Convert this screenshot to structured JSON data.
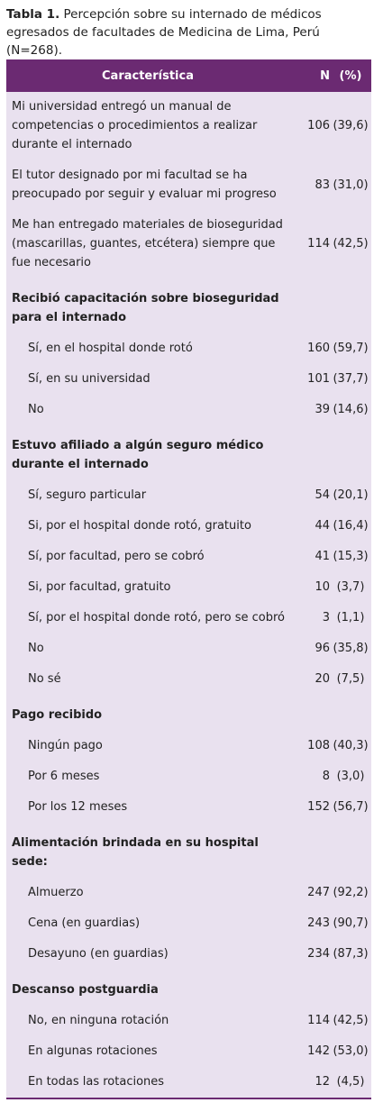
{
  "caption": {
    "label": "Tabla 1.",
    "text": "Percepción sobre su internado de médicos egresados de facultades de Medicina de Lima, Perú (N=268)."
  },
  "table": {
    "header": [
      "Característica",
      "N",
      "(%)"
    ],
    "rows": [
      [
        "Mi universidad entregó un manual de competencias o procedimientos a realizar durante el internado",
        "106",
        "(39,6)"
      ],
      [
        "El tutor designado por mi facultad se ha preocupado por seguir y evaluar mi progreso",
        "83",
        "(31,0)"
      ],
      [
        "Me han entregado materiales de bioseguridad (mascarillas, guantes, etcétera) siempre que fue necesario",
        "114",
        "(42,5)"
      ]
    ],
    "sections": [
      {
        "title": "Recibió capacitación sobre bioseguridad para el internado",
        "rows": [
          [
            "Sí, en el hospital donde rotó",
            "160",
            "(59,7)"
          ],
          [
            "Sí, en su universidad",
            "101",
            "(37,7)"
          ],
          [
            "No",
            "39",
            "(14,6)"
          ]
        ]
      },
      {
        "title": "Estuvo afiliado a algún seguro médico durante el internado",
        "rows": [
          [
            "Sí, seguro particular",
            "54",
            "(20,1)"
          ],
          [
            "Si, por el hospital donde rotó, gratuito",
            "44",
            "(16,4)"
          ],
          [
            "Sí, por facultad, pero se cobró",
            "41",
            "(15,3)"
          ],
          [
            "Si, por facultad, gratuito",
            "10",
            "(3,7)"
          ],
          [
            "Sí, por el hospital donde rotó, pero se cobró",
            "3",
            "(1,1)"
          ],
          [
            "No",
            "96",
            "(35,8)"
          ],
          [
            "No sé",
            "20",
            "(7,5)"
          ]
        ]
      },
      {
        "title": "Pago recibido",
        "rows": [
          [
            "Ningún pago",
            "108",
            "(40,3)"
          ],
          [
            "Por 6 meses",
            "8",
            "(3,0)"
          ],
          [
            "Por los 12 meses",
            "152",
            "(56,7)"
          ]
        ]
      },
      {
        "title": "Alimentación brindada en su hospital sede:",
        "rows": [
          [
            "Almuerzo",
            "247",
            "(92,2)"
          ],
          [
            "Cena (en guardias)",
            "243",
            "(90,7)"
          ],
          [
            "Desayuno (en guardias)",
            "234",
            "(87,3)"
          ]
        ]
      },
      {
        "title": "Descanso postguardia",
        "rows": [
          [
            "No, en ninguna rotación",
            "114",
            "(42,5)"
          ],
          [
            "En algunas rotaciones",
            "142",
            "(53,0)"
          ],
          [
            "En todas las rotaciones",
            "12",
            "(4,5)"
          ]
        ]
      }
    ]
  }
}
